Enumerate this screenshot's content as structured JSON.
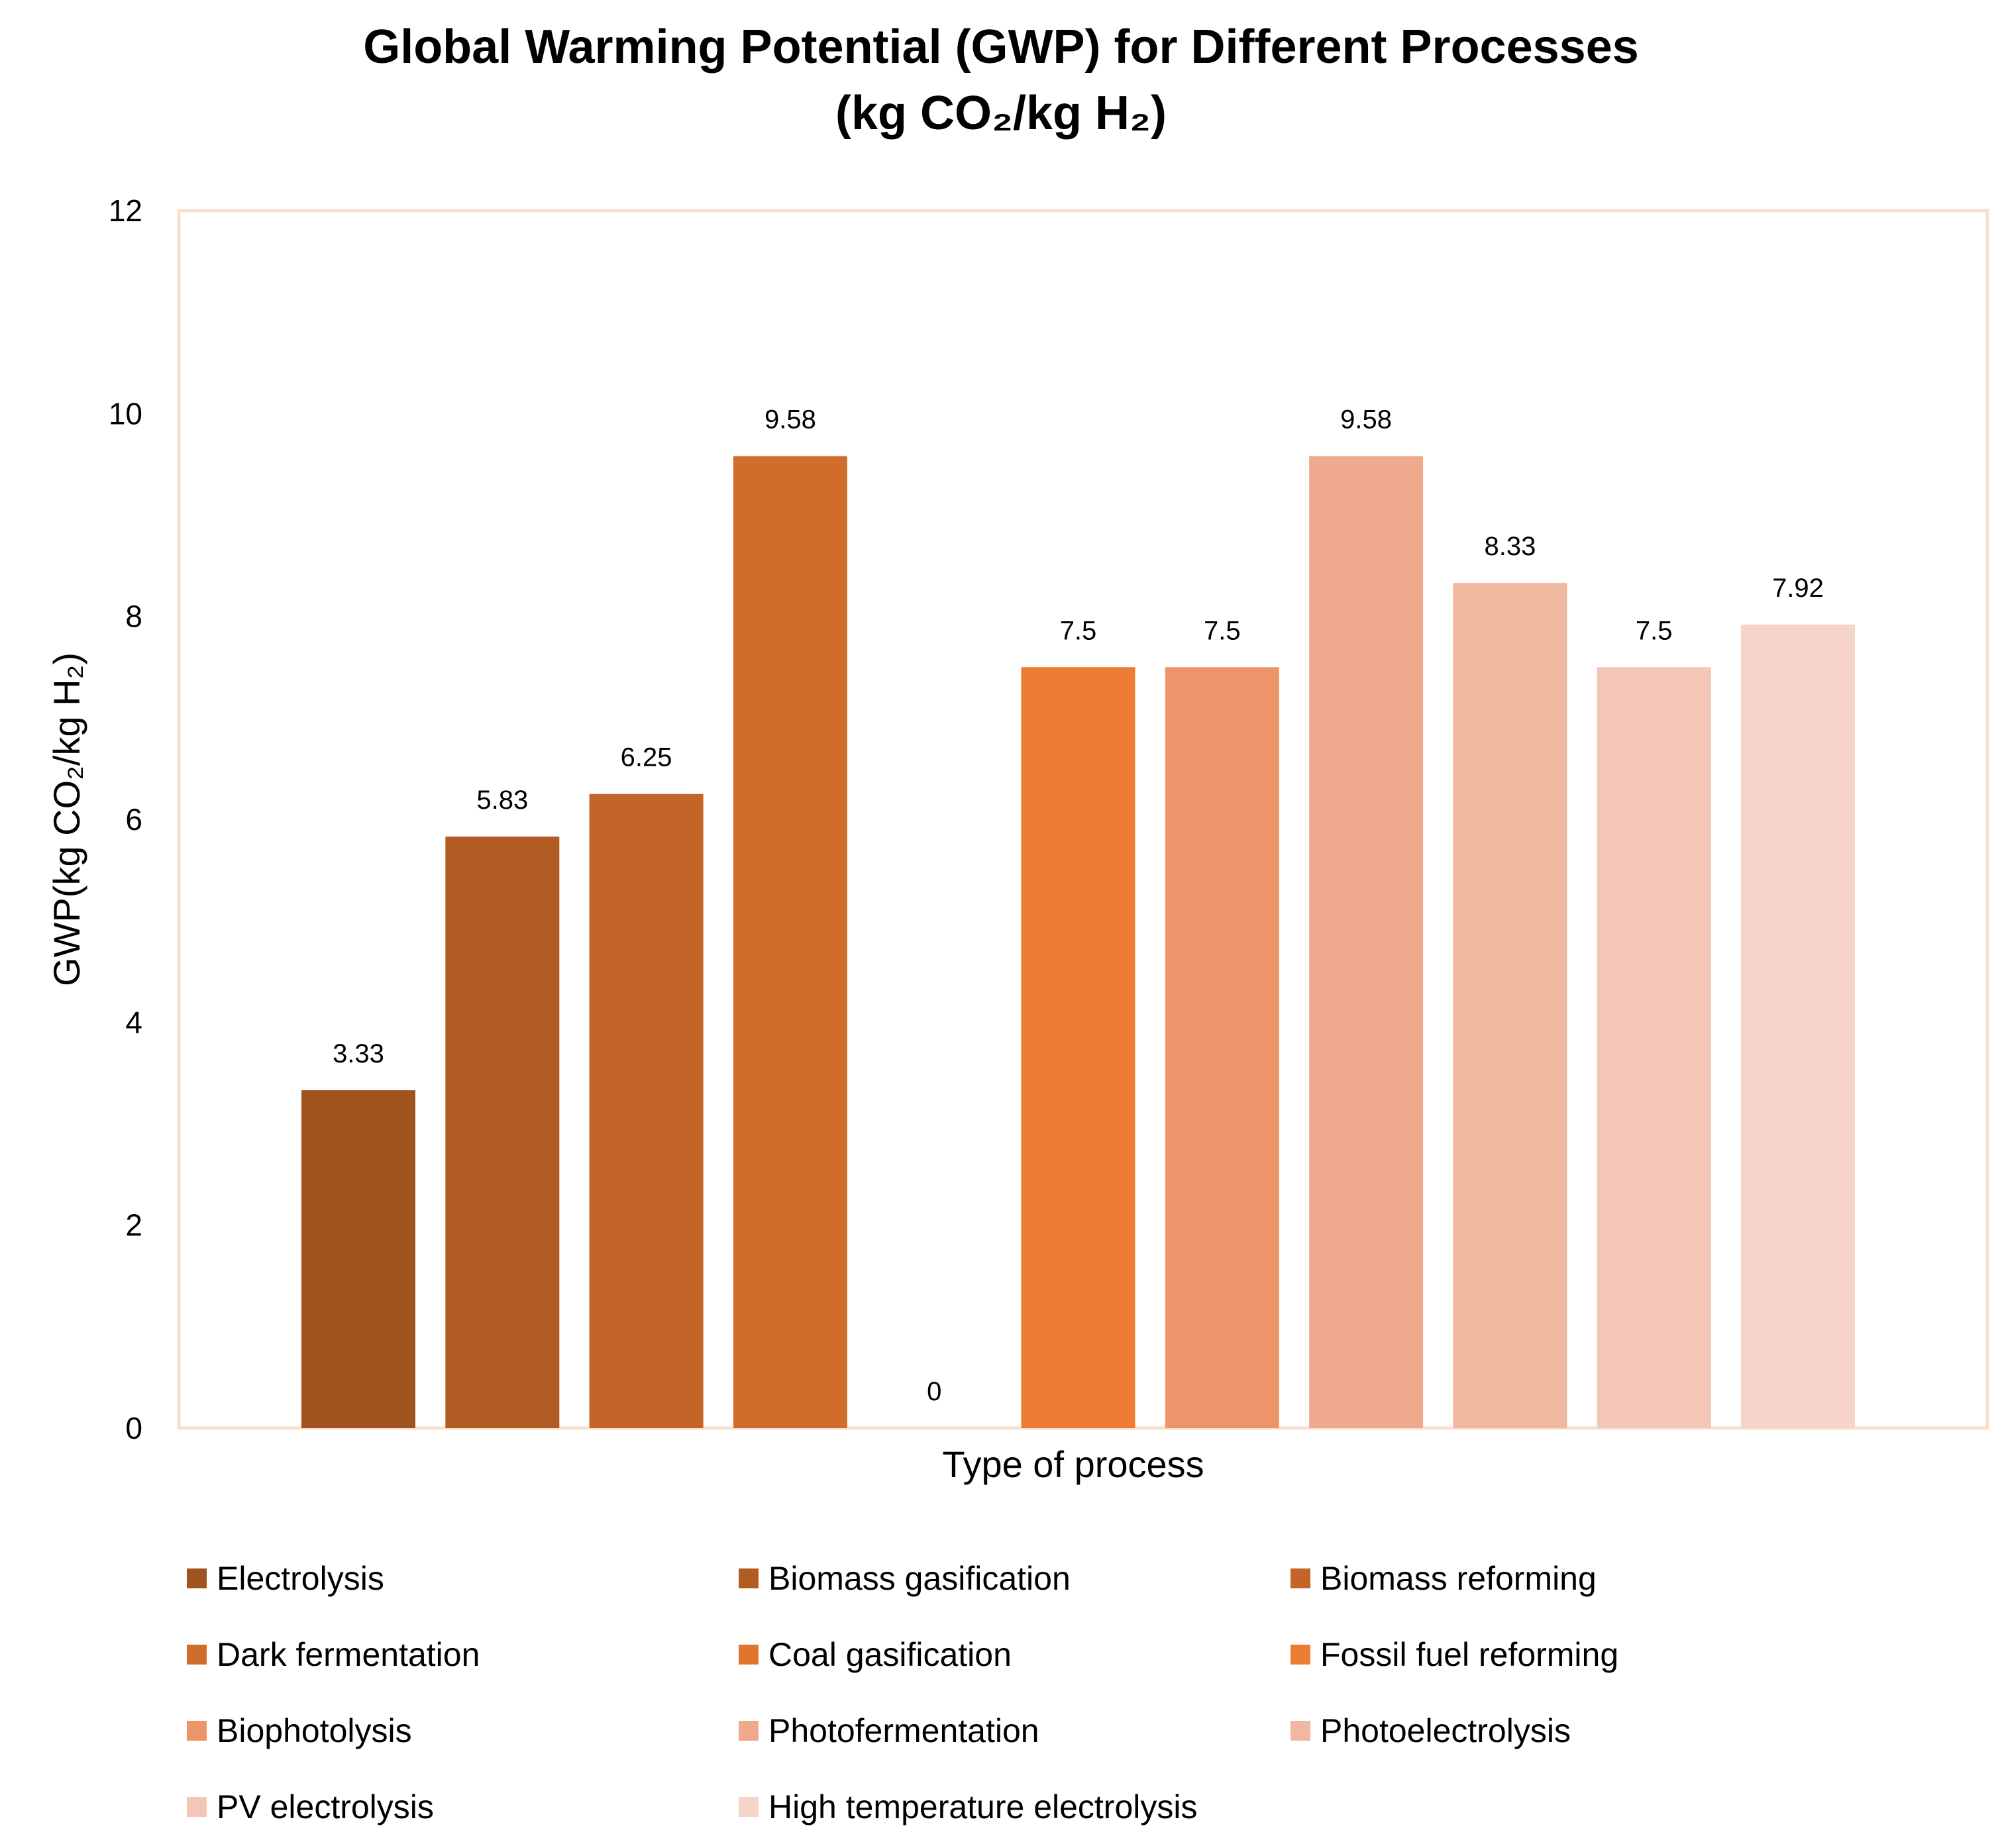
{
  "chart_data": {
    "type": "bar",
    "title_line1": "Global Warming Potential (GWP) for Different Processes",
    "title_line2": "(kg CO₂/kg H₂)",
    "xlabel": "Type of process",
    "ylabel": "GWP(kg CO₂/kg H₂)",
    "ylim": [
      0,
      12
    ],
    "yticks": [
      "0",
      "2",
      "4",
      "6",
      "8",
      "10",
      "12"
    ],
    "legend_position": "bottom",
    "series": [
      {
        "name": "Electrolysis",
        "value": 3.33,
        "label": "3.33",
        "color": "#A0521F"
      },
      {
        "name": "Biomass gasification",
        "value": 5.83,
        "label": "5.83",
        "color": "#B25C23"
      },
      {
        "name": "Biomass reforming",
        "value": 6.25,
        "label": "6.25",
        "color": "#C46428"
      },
      {
        "name": "Dark fermentation",
        "value": 9.58,
        "label": "9.58",
        "color": "#D16D2C"
      },
      {
        "name": "Coal gasification",
        "value": 0,
        "label": "0",
        "color": "#E07530"
      },
      {
        "name": "Fossil fuel reforming",
        "value": 7.5,
        "label": "7.5",
        "color": "#EC7D33"
      },
      {
        "name": "Biophotolysis",
        "value": 7.5,
        "label": "7.5",
        "color": "#EE946A"
      },
      {
        "name": "Photofermentation",
        "value": 9.58,
        "label": "9.58",
        "color": "#EFA98C"
      },
      {
        "name": "Photoelectrolysis",
        "value": 8.33,
        "label": "8.33",
        "color": "#F1B8A0"
      },
      {
        "name": "PV electrolysis",
        "value": 7.5,
        "label": "7.5",
        "color": "#F3C6B6"
      },
      {
        "name": "High temperature electrolysis",
        "value": 7.92,
        "label": "7.92",
        "color": "#F6D4C9"
      }
    ],
    "plot_border_color": "#F8DFCE"
  }
}
